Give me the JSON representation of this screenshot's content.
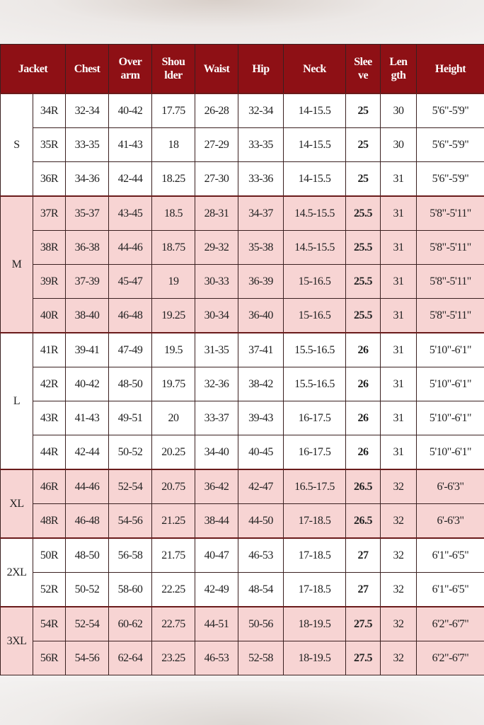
{
  "headers": [
    "Jacket",
    "Chest",
    "Over arm",
    "Shou lder",
    "Waist",
    "Hip",
    "Neck",
    "Slee ve",
    "Len gth",
    "Height"
  ],
  "header_lines": [
    [
      "Jacket"
    ],
    [
      "Chest"
    ],
    [
      "Over",
      "arm"
    ],
    [
      "Shou",
      "lder"
    ],
    [
      "Waist"
    ],
    [
      "Hip"
    ],
    [
      "Neck"
    ],
    [
      "Slee",
      "ve"
    ],
    [
      "Len",
      "gth"
    ],
    [
      "Height"
    ]
  ],
  "colors": {
    "header_bg": "#8e1015",
    "pink_row": "#f7d4d3",
    "white_row": "#ffffff"
  },
  "groups": [
    {
      "size": "S",
      "shade": "white",
      "rows": [
        [
          "34R",
          "32-34",
          "40-42",
          "17.75",
          "26-28",
          "32-34",
          "14-15.5",
          "25",
          "30",
          "5'6\"-5'9\""
        ],
        [
          "35R",
          "33-35",
          "41-43",
          "18",
          "27-29",
          "33-35",
          "14-15.5",
          "25",
          "30",
          "5'6\"-5'9\""
        ],
        [
          "36R",
          "34-36",
          "42-44",
          "18.25",
          "27-30",
          "33-36",
          "14-15.5",
          "25",
          "31",
          "5'6\"-5'9\""
        ]
      ]
    },
    {
      "size": "M",
      "shade": "pink",
      "rows": [
        [
          "37R",
          "35-37",
          "43-45",
          "18.5",
          "28-31",
          "34-37",
          "14.5-15.5",
          "25.5",
          "31",
          "5'8\"-5'11\""
        ],
        [
          "38R",
          "36-38",
          "44-46",
          "18.75",
          "29-32",
          "35-38",
          "14.5-15.5",
          "25.5",
          "31",
          "5'8\"-5'11\""
        ],
        [
          "39R",
          "37-39",
          "45-47",
          "19",
          "30-33",
          "36-39",
          "15-16.5",
          "25.5",
          "31",
          "5'8\"-5'11\""
        ],
        [
          "40R",
          "38-40",
          "46-48",
          "19.25",
          "30-34",
          "36-40",
          "15-16.5",
          "25.5",
          "31",
          "5'8\"-5'11\""
        ]
      ]
    },
    {
      "size": "L",
      "shade": "white",
      "rows": [
        [
          "41R",
          "39-41",
          "47-49",
          "19.5",
          "31-35",
          "37-41",
          "15.5-16.5",
          "26",
          "31",
          "5'10\"-6'1\""
        ],
        [
          "42R",
          "40-42",
          "48-50",
          "19.75",
          "32-36",
          "38-42",
          "15.5-16.5",
          "26",
          "31",
          "5'10\"-6'1\""
        ],
        [
          "43R",
          "41-43",
          "49-51",
          "20",
          "33-37",
          "39-43",
          "16-17.5",
          "26",
          "31",
          "5'10\"-6'1\""
        ],
        [
          "44R",
          "42-44",
          "50-52",
          "20.25",
          "34-40",
          "40-45",
          "16-17.5",
          "26",
          "31",
          "5'10\"-6'1\""
        ]
      ]
    },
    {
      "size": "XL",
      "shade": "pink",
      "rows": [
        [
          "46R",
          "44-46",
          "52-54",
          "20.75",
          "36-42",
          "42-47",
          "16.5-17.5",
          "26.5",
          "32",
          "6'-6'3\""
        ],
        [
          "48R",
          "46-48",
          "54-56",
          "21.25",
          "38-44",
          "44-50",
          "17-18.5",
          "26.5",
          "32",
          "6'-6'3\""
        ]
      ]
    },
    {
      "size": "2XL",
      "shade": "white",
      "rows": [
        [
          "50R",
          "48-50",
          "56-58",
          "21.75",
          "40-47",
          "46-53",
          "17-18.5",
          "27",
          "32",
          "6'1\"-6'5\""
        ],
        [
          "52R",
          "50-52",
          "58-60",
          "22.25",
          "42-49",
          "48-54",
          "17-18.5",
          "27",
          "32",
          "6'1\"-6'5\""
        ]
      ]
    },
    {
      "size": "3XL",
      "shade": "pink",
      "rows": [
        [
          "54R",
          "52-54",
          "60-62",
          "22.75",
          "44-51",
          "50-56",
          "18-19.5",
          "27.5",
          "32",
          "6'2\"-6'7\""
        ],
        [
          "56R",
          "54-56",
          "62-64",
          "23.25",
          "46-53",
          "52-58",
          "18-19.5",
          "27.5",
          "32",
          "6'2\"-6'7\""
        ]
      ]
    }
  ]
}
